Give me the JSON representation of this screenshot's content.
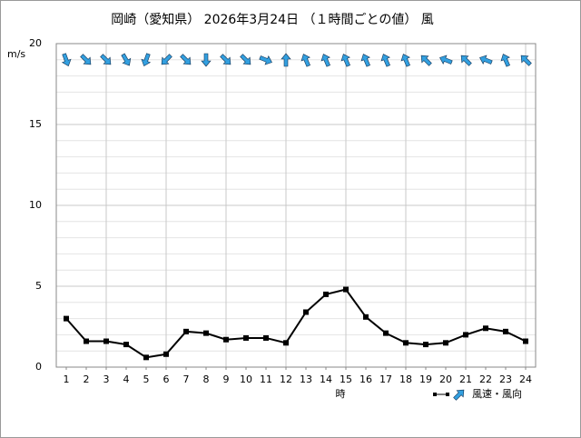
{
  "chart_data": {
    "type": "line",
    "title": "岡崎（愛知県） 2026年3月24日 （１時間ごとの値） 風",
    "y_label": "m/s",
    "x_label": "時",
    "legend_label": "風速・風向",
    "x": [
      1,
      2,
      3,
      4,
      5,
      6,
      7,
      8,
      9,
      10,
      11,
      12,
      13,
      14,
      15,
      16,
      17,
      18,
      19,
      20,
      21,
      22,
      23,
      24
    ],
    "series": [
      {
        "name": "風速",
        "color": "#000000",
        "values": [
          3.0,
          1.6,
          1.6,
          1.4,
          0.6,
          0.8,
          2.2,
          2.1,
          1.7,
          1.8,
          1.8,
          1.5,
          3.4,
          4.5,
          4.8,
          3.1,
          2.1,
          1.5,
          1.4,
          1.5,
          2.0,
          2.4,
          2.2,
          1.6
        ]
      }
    ],
    "directions": [
      160,
      135,
      135,
      150,
      200,
      225,
      135,
      180,
      135,
      135,
      112,
      0,
      337,
      337,
      337,
      337,
      337,
      337,
      315,
      292,
      315,
      292,
      337,
      315
    ],
    "arrow_color": "#33a0e0",
    "xlim": [
      0.5,
      24.5
    ],
    "xticks": [
      1,
      2,
      3,
      4,
      5,
      6,
      7,
      8,
      9,
      10,
      11,
      12,
      13,
      14,
      15,
      16,
      17,
      18,
      19,
      20,
      21,
      22,
      23,
      24
    ],
    "xgrid": [
      3,
      6,
      9,
      12,
      15,
      18,
      21,
      24
    ],
    "ylim": [
      0,
      20
    ],
    "yticks": [
      0,
      5,
      10,
      15,
      20
    ],
    "yticks_minor": [
      1,
      2,
      3,
      4,
      6,
      7,
      8,
      9,
      11,
      12,
      13,
      14,
      16,
      17,
      18,
      19
    ],
    "grid": true
  }
}
